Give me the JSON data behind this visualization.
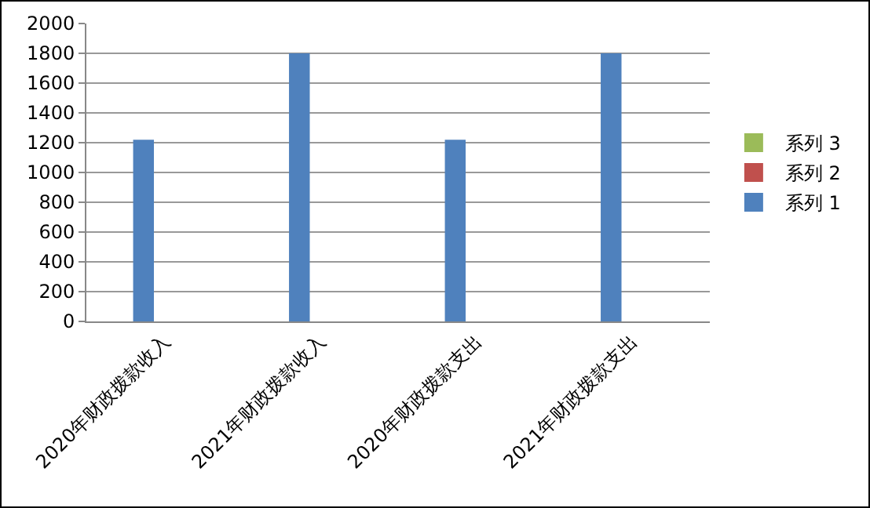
{
  "chart_data": {
    "type": "bar",
    "categories": [
      "2020年财政拨款收入",
      "2021年财政拨款收入",
      "2020年财政拨款支出",
      "2021年财政拨款支出"
    ],
    "series": [
      {
        "name": "系列 1",
        "color": "#4f81bd",
        "values": [
          1220,
          1800,
          1220,
          1800
        ]
      },
      {
        "name": "系列 2",
        "color": "#c0504d",
        "values": [
          null,
          null,
          null,
          null
        ]
      },
      {
        "name": "系列 3",
        "color": "#9bbb59",
        "values": [
          null,
          null,
          null,
          null
        ]
      }
    ],
    "ylim": [
      0,
      2000
    ],
    "yticks": [
      0,
      200,
      400,
      600,
      800,
      1000,
      1200,
      1400,
      1600,
      1800,
      2000
    ],
    "grid": "y",
    "legend": "right"
  }
}
